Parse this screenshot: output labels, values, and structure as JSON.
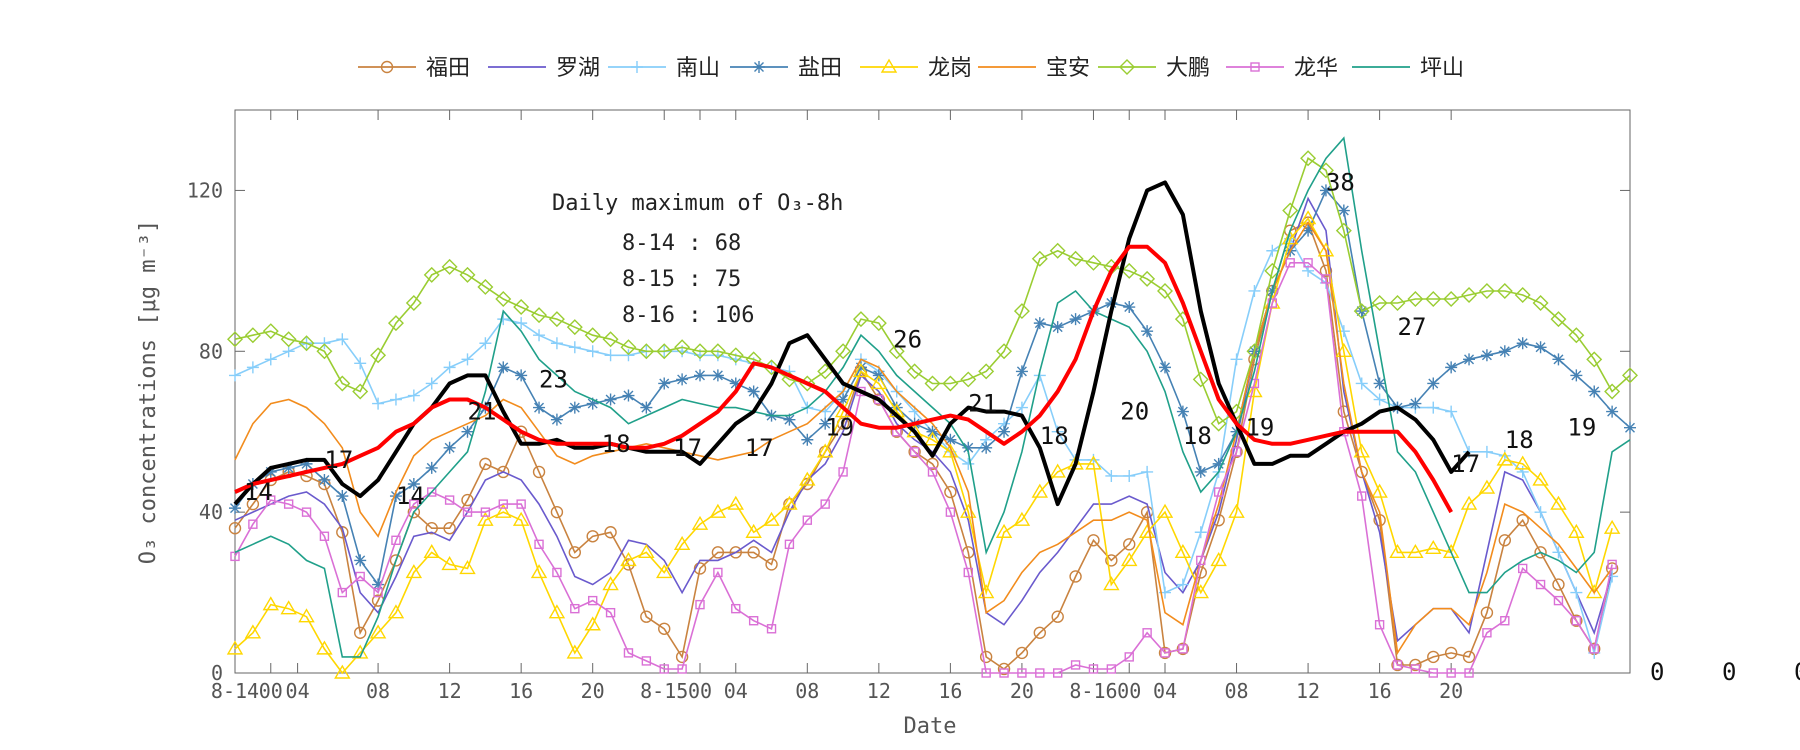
{
  "chart_data": {
    "type": "line",
    "xlabel": "Date",
    "ylabel": "O₃ concentrations [μg m⁻³]",
    "ylim": [
      0,
      140
    ],
    "yticks": [
      0,
      40,
      80,
      120
    ],
    "xlim": [
      0,
      68
    ],
    "xticks": [
      {
        "x": 0,
        "label": "8-14"
      },
      {
        "x": 2,
        "label": "00"
      },
      {
        "x": 3.5,
        "label": "04"
      },
      {
        "x": 8,
        "label": "08"
      },
      {
        "x": 12,
        "label": "12"
      },
      {
        "x": 16,
        "label": "16"
      },
      {
        "x": 20,
        "label": "20"
      },
      {
        "x": 24,
        "label": "8-15"
      },
      {
        "x": 26,
        "label": "00"
      },
      {
        "x": 28,
        "label": "04"
      },
      {
        "x": 32,
        "label": "08"
      },
      {
        "x": 36,
        "label": "12"
      },
      {
        "x": 40,
        "label": "16"
      },
      {
        "x": 44,
        "label": "20"
      },
      {
        "x": 48,
        "label": "8-16"
      },
      {
        "x": 50,
        "label": "00"
      },
      {
        "x": 52,
        "label": "04"
      },
      {
        "x": 56,
        "label": "08"
      },
      {
        "x": 60,
        "label": "12"
      },
      {
        "x": 64,
        "label": "16"
      },
      {
        "x": 68,
        "label": "20"
      }
    ],
    "right_labels": [
      "0",
      "0",
      "0"
    ],
    "legend_position": "top",
    "series": [
      {
        "name": "福田",
        "color": "#c98340",
        "marker": "circle",
        "values": [
          36,
          42,
          48,
          50,
          49,
          47,
          35,
          10,
          18,
          28,
          40,
          36,
          36,
          43,
          52,
          50,
          60,
          50,
          40,
          30,
          34,
          35,
          27,
          14,
          11,
          4,
          26,
          30,
          30,
          30,
          27,
          42,
          47,
          55,
          62,
          75,
          68,
          60,
          55,
          52,
          45,
          30,
          4,
          1,
          5,
          10,
          14,
          24,
          33,
          28,
          32,
          40,
          5,
          6,
          25,
          38,
          55,
          78,
          95,
          110,
          112,
          100,
          65,
          50,
          38,
          2,
          2,
          4,
          5,
          4,
          15,
          33,
          38,
          30,
          22,
          13,
          6,
          26
        ]
      },
      {
        "name": "罗湖",
        "color": "#6a5acd",
        "marker": "none",
        "values": [
          38,
          40,
          42,
          44,
          45,
          42,
          36,
          20,
          15,
          24,
          34,
          35,
          33,
          40,
          48,
          50,
          48,
          42,
          34,
          24,
          22,
          25,
          33,
          32,
          28,
          20,
          28,
          28,
          30,
          33,
          30,
          40,
          48,
          52,
          60,
          74,
          70,
          62,
          58,
          55,
          50,
          38,
          15,
          12,
          18,
          25,
          30,
          36,
          42,
          42,
          44,
          42,
          25,
          20,
          28,
          40,
          58,
          80,
          95,
          105,
          118,
          110,
          70,
          50,
          35,
          8,
          12,
          16,
          16,
          10,
          30,
          50,
          48,
          40,
          30,
          20,
          10,
          25
        ]
      },
      {
        "name": "南山",
        "color": "#87cefa",
        "marker": "plus",
        "values": [
          74,
          76,
          78,
          80,
          82,
          82,
          83,
          77,
          67,
          68,
          69,
          72,
          76,
          78,
          82,
          88,
          87,
          84,
          82,
          81,
          80,
          79,
          79,
          80,
          80,
          80,
          79,
          79,
          78,
          77,
          76,
          75,
          66,
          65,
          70,
          78,
          75,
          70,
          65,
          60,
          55,
          52,
          58,
          62,
          66,
          74,
          60,
          53,
          53,
          49,
          49,
          50,
          20,
          22,
          35,
          50,
          78,
          95,
          105,
          108,
          100,
          97,
          85,
          72,
          68,
          66,
          66,
          66,
          65,
          55,
          55,
          54,
          50,
          40,
          30,
          20,
          5,
          24
        ]
      },
      {
        "name": "盐田",
        "color": "#4682b4",
        "marker": "star",
        "values": [
          41,
          47,
          50,
          51,
          52,
          48,
          44,
          28,
          22,
          44,
          47,
          51,
          56,
          60,
          66,
          76,
          74,
          66,
          63,
          66,
          67,
          68,
          69,
          66,
          72,
          73,
          74,
          74,
          72,
          70,
          64,
          63,
          58,
          62,
          68,
          76,
          74,
          66,
          62,
          60,
          58,
          56,
          56,
          60,
          75,
          87,
          86,
          88,
          90,
          92,
          91,
          85,
          76,
          65,
          50,
          52,
          60,
          80,
          95,
          105,
          110,
          120,
          115,
          90,
          72,
          66,
          67,
          72,
          76,
          78,
          79,
          80,
          82,
          81,
          78,
          74,
          70,
          65,
          61
        ]
      },
      {
        "name": "龙岗",
        "color": "#ffd700",
        "marker": "triangle",
        "values": [
          6,
          10,
          17,
          16,
          14,
          6,
          0,
          5,
          10,
          15,
          25,
          30,
          27,
          26,
          38,
          40,
          38,
          25,
          15,
          5,
          12,
          22,
          28,
          30,
          25,
          32,
          37,
          40,
          42,
          35,
          38,
          42,
          48,
          55,
          65,
          75,
          72,
          65,
          60,
          58,
          55,
          40,
          20,
          35,
          38,
          45,
          50,
          52,
          52,
          22,
          28,
          35,
          40,
          30,
          20,
          28,
          40,
          70,
          92,
          108,
          113,
          105,
          80,
          55,
          45,
          30,
          30,
          31,
          30,
          42,
          46,
          53,
          52,
          48,
          42,
          35,
          20,
          36
        ]
      },
      {
        "name": "宝安",
        "color": "#f28c1d",
        "marker": "none",
        "values": [
          53,
          62,
          67,
          68,
          66,
          62,
          56,
          40,
          34,
          45,
          54,
          58,
          60,
          62,
          64,
          68,
          66,
          60,
          54,
          52,
          54,
          55,
          56,
          57,
          56,
          55,
          54,
          53,
          54,
          55,
          58,
          60,
          62,
          66,
          70,
          78,
          76,
          70,
          66,
          62,
          56,
          45,
          15,
          18,
          25,
          30,
          32,
          35,
          38,
          38,
          40,
          38,
          15,
          12,
          28,
          42,
          60,
          80,
          95,
          105,
          112,
          105,
          72,
          50,
          40,
          5,
          12,
          16,
          16,
          12,
          25,
          42,
          40,
          36,
          32,
          26,
          20,
          26
        ]
      },
      {
        "name": "大鹏",
        "color": "#9acd32",
        "marker": "diamond",
        "values": [
          83,
          84,
          85,
          83,
          82,
          80,
          72,
          70,
          79,
          87,
          92,
          99,
          101,
          99,
          96,
          93,
          91,
          89,
          88,
          86,
          84,
          83,
          81,
          80,
          80,
          81,
          80,
          80,
          79,
          78,
          76,
          73,
          72,
          75,
          80,
          88,
          87,
          80,
          75,
          72,
          72,
          73,
          75,
          80,
          90,
          103,
          105,
          103,
          102,
          101,
          100,
          98,
          95,
          88,
          73,
          62,
          65,
          80,
          100,
          115,
          128,
          125,
          110,
          90,
          92,
          92,
          93,
          93,
          93,
          94,
          95,
          95,
          94,
          92,
          88,
          84,
          78,
          70,
          74
        ]
      },
      {
        "name": "龙华",
        "color": "#da70d6",
        "marker": "square",
        "values": [
          29,
          37,
          43,
          42,
          40,
          34,
          20,
          24,
          20,
          33,
          42,
          45,
          43,
          40,
          40,
          42,
          42,
          32,
          25,
          16,
          18,
          15,
          5,
          3,
          1,
          1,
          17,
          25,
          16,
          13,
          11,
          32,
          38,
          42,
          50,
          70,
          68,
          60,
          55,
          50,
          40,
          25,
          0,
          0,
          0,
          0,
          0,
          2,
          1,
          1,
          4,
          10,
          5,
          6,
          28,
          45,
          55,
          72,
          92,
          102,
          102,
          98,
          60,
          44,
          12,
          2,
          1,
          0,
          0,
          0,
          10,
          13,
          26,
          22,
          18,
          13,
          6,
          27
        ]
      },
      {
        "name": "坪山",
        "color": "#20a08a",
        "marker": "none",
        "values": [
          30,
          32,
          34,
          32,
          28,
          26,
          4,
          4,
          14,
          28,
          40,
          45,
          50,
          55,
          70,
          90,
          85,
          78,
          74,
          70,
          68,
          66,
          62,
          64,
          66,
          68,
          67,
          66,
          66,
          65,
          64,
          64,
          66,
          70,
          76,
          84,
          80,
          74,
          70,
          66,
          62,
          55,
          30,
          40,
          55,
          75,
          92,
          95,
          90,
          88,
          86,
          80,
          70,
          55,
          45,
          50,
          60,
          75,
          95,
          110,
          120,
          128,
          133,
          105,
          80,
          55,
          50,
          40,
          30,
          20,
          20,
          25,
          28,
          30,
          28,
          25,
          30,
          55,
          58
        ]
      }
    ],
    "summary_lines": [
      {
        "color": "#000000",
        "values": [
          42,
          47,
          51,
          52,
          53,
          53,
          47,
          44,
          48,
          55,
          62,
          66,
          72,
          74,
          74,
          65,
          57,
          57,
          58,
          56,
          56,
          57,
          56,
          55,
          55,
          55,
          52,
          57,
          62,
          65,
          72,
          82,
          84,
          78,
          72,
          70,
          68,
          64,
          60,
          54,
          62,
          66,
          65,
          65,
          64,
          56,
          42,
          52,
          70,
          90,
          108,
          120,
          122,
          114,
          90,
          72,
          62,
          52,
          52,
          54,
          54,
          57,
          60,
          62,
          65,
          66,
          63,
          58,
          50,
          55
        ]
      },
      {
        "color": "#ff0000",
        "values": [
          45,
          47,
          48,
          49,
          50,
          51,
          52,
          54,
          56,
          60,
          62,
          66,
          68,
          68,
          66,
          63,
          60,
          58,
          57,
          57,
          57,
          57,
          56,
          56,
          57,
          59,
          62,
          65,
          70,
          77,
          76,
          74,
          72,
          70,
          66,
          62,
          61,
          61,
          62,
          63,
          64,
          63,
          60,
          57,
          60,
          64,
          70,
          78,
          90,
          100,
          106,
          106,
          102,
          92,
          80,
          68,
          62,
          58,
          57,
          57,
          58,
          59,
          60,
          60,
          60,
          60,
          55,
          48,
          40
        ]
      }
    ],
    "point_annotations": [
      {
        "x": 0.5,
        "y": 43,
        "label": "14"
      },
      {
        "x": 5,
        "y": 51,
        "label": "17"
      },
      {
        "x": 9,
        "y": 42,
        "label": "14"
      },
      {
        "x": 13,
        "y": 63,
        "label": "21"
      },
      {
        "x": 17,
        "y": 71,
        "label": "23"
      },
      {
        "x": 20.5,
        "y": 55,
        "label": "18"
      },
      {
        "x": 24.5,
        "y": 54,
        "label": "17"
      },
      {
        "x": 28.5,
        "y": 54,
        "label": "17"
      },
      {
        "x": 33,
        "y": 59,
        "label": "19"
      },
      {
        "x": 36.8,
        "y": 81,
        "label": "26"
      },
      {
        "x": 41,
        "y": 65,
        "label": "21"
      },
      {
        "x": 45,
        "y": 57,
        "label": "18"
      },
      {
        "x": 49.5,
        "y": 63,
        "label": "20"
      },
      {
        "x": 53,
        "y": 57,
        "label": "18"
      },
      {
        "x": 56.5,
        "y": 59,
        "label": "19"
      },
      {
        "x": 61,
        "y": 120,
        "label": "38"
      },
      {
        "x": 65,
        "y": 84,
        "label": "27"
      },
      {
        "x": 68,
        "y": 50,
        "label": "17"
      },
      {
        "x": 71,
        "y": 56,
        "label": "18"
      },
      {
        "x": 74.5,
        "y": 59,
        "label": "19"
      }
    ],
    "text_box": {
      "title": "Daily maximum of O₃-8h",
      "lines": [
        "8-14 : 68",
        "8-15 : 75",
        "8-16 : 106"
      ]
    }
  }
}
